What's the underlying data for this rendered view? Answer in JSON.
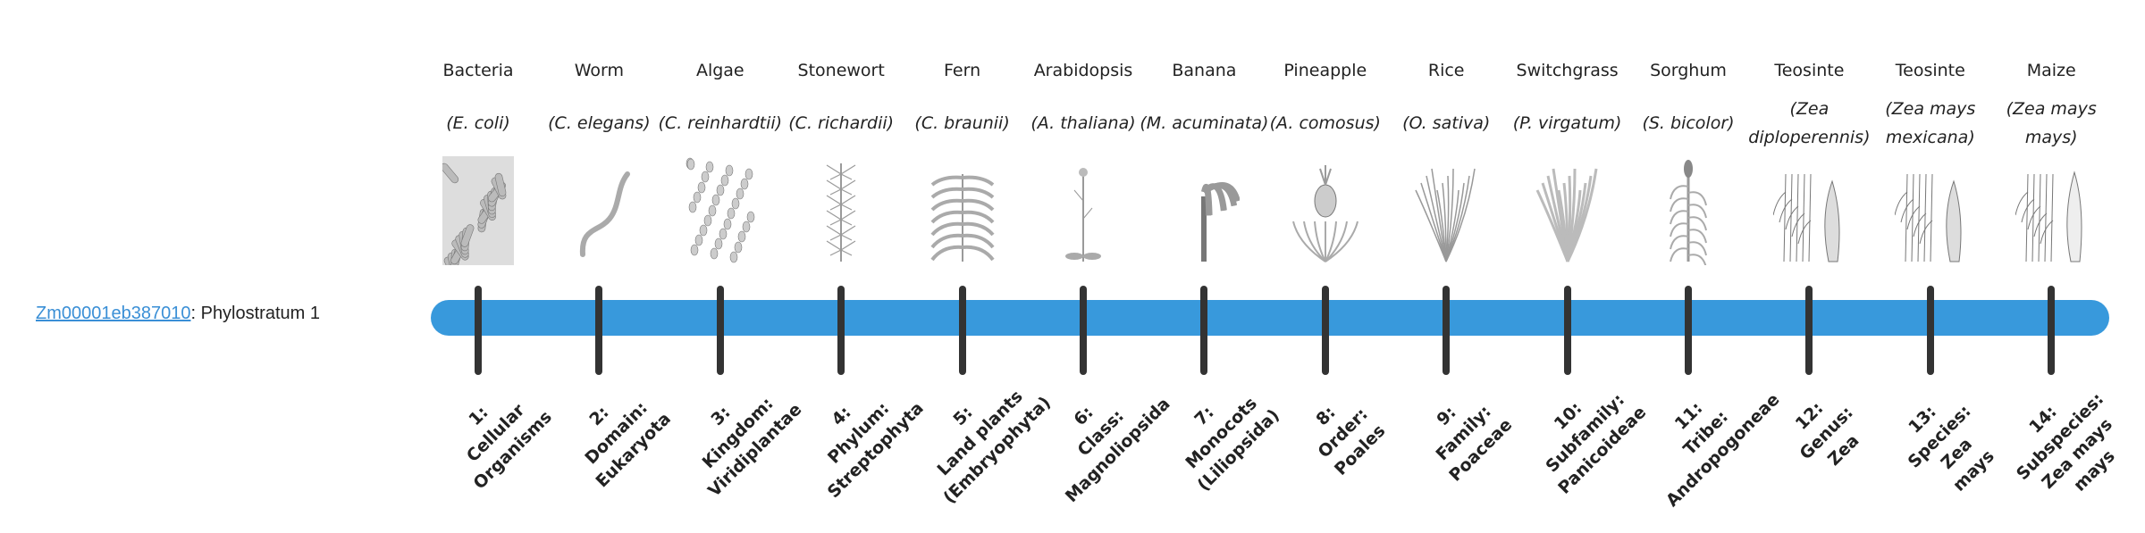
{
  "gene": {
    "id": "Zm00001eb387010",
    "suffix": ": Phylostratum 1"
  },
  "colors": {
    "bar": "#3899dc",
    "tick": "#333333",
    "link": "#3a8fd6"
  },
  "strata": [
    {
      "common": "Bacteria",
      "species": "(E. coli)",
      "icon": "bacteria-image",
      "rank": [
        "1:",
        "Cellular",
        "Organisms"
      ]
    },
    {
      "common": "Worm",
      "species": "(C. elegans)",
      "icon": "worm-image",
      "rank": [
        "2:",
        "Domain:",
        "Eukaryota"
      ]
    },
    {
      "common": "Algae",
      "species": "(C. reinhardtii)",
      "icon": "algae-image",
      "rank": [
        "3:",
        "Kingdom:",
        "Viridiplantae"
      ]
    },
    {
      "common": "Stonewort",
      "species": "(C. richardii)",
      "icon": "stonewort-image",
      "rank": [
        "4:",
        "Phylum:",
        "Streptophyta"
      ]
    },
    {
      "common": "Fern",
      "species": "(C. braunii)",
      "icon": "fern-image",
      "rank": [
        "5:",
        "Land plants",
        "(Embryophyta)"
      ]
    },
    {
      "common": "Arabidopsis",
      "species": "(A. thaliana)",
      "icon": "arabidopsis-image",
      "rank": [
        "6:",
        "Class:",
        "Magnoliopsida"
      ]
    },
    {
      "common": "Banana",
      "species": "(M. acuminata)",
      "icon": "banana-image",
      "rank": [
        "7:",
        "Monocots",
        "(Liliopsida)"
      ]
    },
    {
      "common": "Pineapple",
      "species": "(A. comosus)",
      "icon": "pineapple-image",
      "rank": [
        "8:",
        "Order:",
        "Poales"
      ]
    },
    {
      "common": "Rice",
      "species": "(O. sativa)",
      "icon": "rice-image",
      "rank": [
        "9:",
        "Family:",
        "Poaceae"
      ]
    },
    {
      "common": "Switchgrass",
      "species": "(P. virgatum)",
      "icon": "switchgrass-image",
      "rank": [
        "10:",
        "Subfamily:",
        "Panicoideae"
      ]
    },
    {
      "common": "Sorghum",
      "species": "(S. bicolor)",
      "icon": "sorghum-image",
      "rank": [
        "11:",
        "Tribe:",
        "Andropogoneae"
      ]
    },
    {
      "common": "Teosinte",
      "species": "(Zea diploperennis)",
      "icon": "teosinte-image",
      "rank": [
        "12:",
        "Genus:",
        "Zea"
      ]
    },
    {
      "common": "Teosinte",
      "species": "(Zea mays mexicana)",
      "icon": "teosinte-mexicana-image",
      "rank": [
        "13:",
        "Species:",
        "Zea",
        "mays"
      ]
    },
    {
      "common": "Maize",
      "species": "(Zea mays mays)",
      "icon": "maize-image",
      "rank": [
        "14:",
        "Subspecies:",
        "Zea mays",
        "mays"
      ]
    }
  ]
}
